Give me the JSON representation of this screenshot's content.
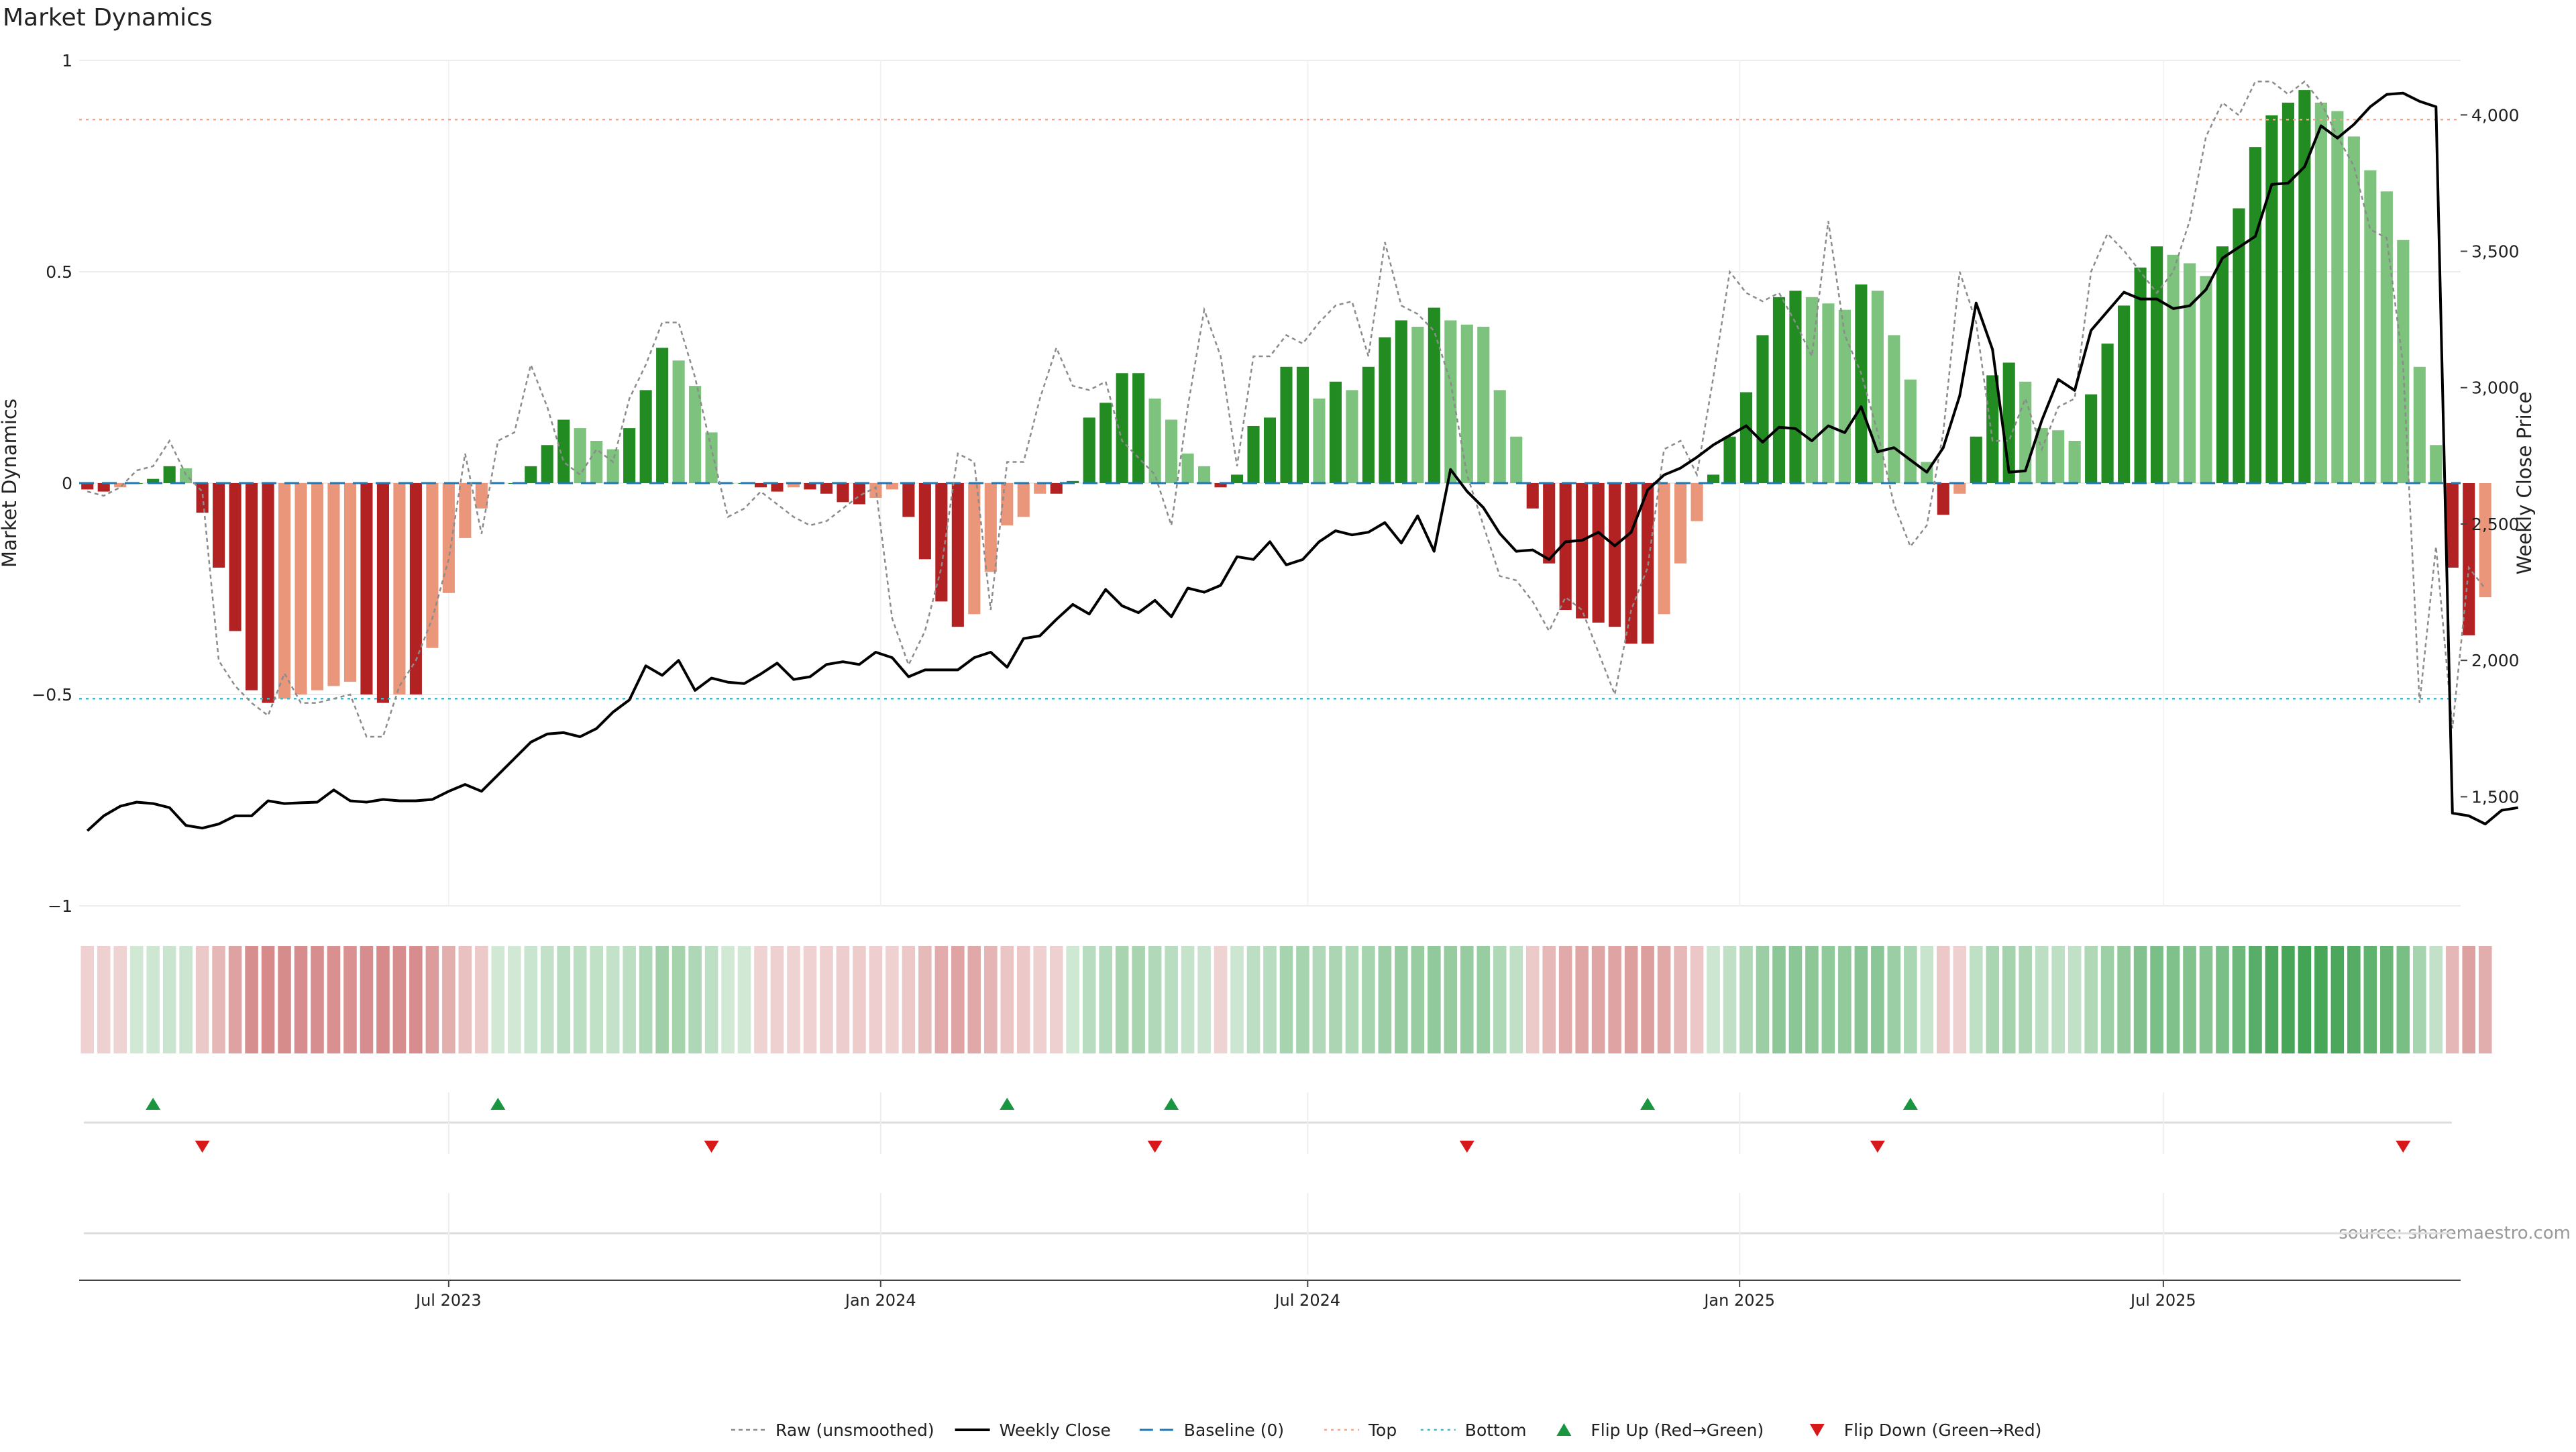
{
  "chart_data": {
    "type": "bar",
    "title": "Market Dynamics",
    "ylabel": "Market Dynamics",
    "ylabel2": "Weekly Close Price",
    "ylim": [
      -1,
      1
    ],
    "ylim2": [
      1100,
      4200
    ],
    "y_ticks": [
      1,
      0.5,
      0,
      -0.5,
      -1
    ],
    "y_tick_labels": [
      "1",
      "0.5",
      "0",
      "−0.5",
      "−1"
    ],
    "y2_ticks": [
      4000,
      3500,
      3000,
      2500,
      2000,
      1500
    ],
    "y2_tick_labels": [
      "4,000",
      "3,500",
      "3,000",
      "2,500",
      "2,000",
      "1,500"
    ],
    "x_ticks": [
      {
        "label": "Jul 2023",
        "week": 22
      },
      {
        "label": "Jan 2024",
        "week": 48.3
      },
      {
        "label": "Jul 2024",
        "week": 74.3
      },
      {
        "label": "Jan 2025",
        "week": 100.6
      },
      {
        "label": "Jul 2025",
        "week": 126.4
      }
    ],
    "top_level": 0.86,
    "bottom_level": -0.51,
    "weeks": 145,
    "series": [
      {
        "name": "Raw (unsmoothed)",
        "values": [
          -0.02,
          -0.03,
          -0.01,
          0.03,
          0.04,
          0.1,
          0.02,
          -0.02,
          -0.42,
          -0.48,
          -0.52,
          -0.55,
          -0.45,
          -0.52,
          -0.52,
          -0.51,
          -0.5,
          -0.6,
          -0.6,
          -0.48,
          -0.42,
          -0.32,
          -0.18,
          0.07,
          -0.12,
          0.1,
          0.12,
          0.28,
          0.18,
          0.05,
          0.02,
          0.08,
          0.05,
          0.2,
          0.28,
          0.38,
          0.38,
          0.25,
          0.08,
          -0.08,
          -0.06,
          -0.02,
          -0.05,
          -0.08,
          -0.1,
          -0.09,
          -0.06,
          -0.03,
          -0.01,
          -0.32,
          -0.43,
          -0.35,
          -0.2,
          0.07,
          0.05,
          -0.3,
          0.05,
          0.05,
          0.2,
          0.32,
          0.23,
          0.22,
          0.24,
          0.1,
          0.06,
          0.02,
          -0.1,
          0.18,
          0.41,
          0.3,
          0.04,
          0.3,
          0.3,
          0.35,
          0.33,
          0.38,
          0.42,
          0.43,
          0.3,
          0.57,
          0.42,
          0.4,
          0.36,
          0.24,
          0.02,
          -0.1,
          -0.22,
          -0.23,
          -0.28,
          -0.35,
          -0.27,
          -0.3,
          -0.4,
          -0.5,
          -0.3,
          -0.2,
          0.08,
          0.1,
          0.02,
          0.25,
          0.5,
          0.45,
          0.43,
          0.45,
          0.38,
          0.3,
          0.62,
          0.35,
          0.26,
          0.12,
          -0.05,
          -0.15,
          -0.1,
          0.12,
          0.5,
          0.38,
          0.1,
          0.1,
          0.2,
          0.08,
          0.18,
          0.2,
          0.5,
          0.59,
          0.55,
          0.5,
          0.45,
          0.5,
          0.62,
          0.82,
          0.9,
          0.87,
          0.95,
          0.95,
          0.92,
          0.95,
          0.9,
          0.82,
          0.75,
          0.6,
          0.58,
          0.28,
          -0.52,
          -0.15,
          -0.58,
          -0.2,
          -0.25
        ]
      },
      {
        "name": "Weekly Close",
        "values": [
          1375,
          1430,
          1465,
          1480,
          1475,
          1460,
          1395,
          1385,
          1400,
          1430,
          1430,
          1485,
          1475,
          1478,
          1480,
          1525,
          1485,
          1480,
          1490,
          1485,
          1485,
          1490,
          1520,
          1545,
          1520,
          1580,
          1640,
          1700,
          1730,
          1735,
          1720,
          1750,
          1810,
          1855,
          1980,
          1945,
          2000,
          1890,
          1935,
          1920,
          1915,
          1950,
          1990,
          1930,
          1940,
          1985,
          1995,
          1985,
          2030,
          2010,
          1940,
          1965,
          1965,
          1965,
          2010,
          2030,
          1975,
          2080,
          2090,
          2150,
          2205,
          2170,
          2260,
          2200,
          2175,
          2220,
          2160,
          2265,
          2250,
          2275,
          2380,
          2370,
          2435,
          2350,
          2370,
          2435,
          2475,
          2460,
          2470,
          2505,
          2430,
          2530,
          2400,
          2700,
          2620,
          2560,
          2465,
          2400,
          2405,
          2370,
          2435,
          2440,
          2470,
          2420,
          2470,
          2625,
          2680,
          2705,
          2745,
          2790,
          2825,
          2860,
          2800,
          2855,
          2850,
          2805,
          2860,
          2835,
          2930,
          2765,
          2780,
          2735,
          2690,
          2780,
          2970,
          3310,
          3140,
          2690,
          2695,
          2880,
          3030,
          2990,
          3210,
          3280,
          3350,
          3325,
          3325,
          3290,
          3300,
          3360,
          3475,
          3515,
          3555,
          3745,
          3750,
          3810,
          3960,
          3915,
          3965,
          4030,
          4075,
          4080,
          4050,
          4030,
          1440,
          1430,
          1400,
          1450,
          1460
        ]
      },
      {
        "name": "Baseline (0)"
      },
      {
        "name": "Top"
      },
      {
        "name": "Bottom"
      },
      {
        "name": "Flip Up (Red→Green)"
      },
      {
        "name": "Flip Down (Green→Red)"
      }
    ],
    "bars": [
      -0.015,
      -0.02,
      -0.01,
      0.0,
      0.01,
      0.04,
      0.035,
      -0.07,
      -0.2,
      -0.35,
      -0.49,
      -0.52,
      -0.51,
      -0.5,
      -0.49,
      -0.48,
      -0.47,
      -0.5,
      -0.52,
      -0.5,
      -0.5,
      -0.39,
      -0.26,
      -0.13,
      -0.06,
      0.0,
      0.0,
      0.04,
      0.09,
      0.15,
      0.13,
      0.1,
      0.08,
      0.13,
      0.22,
      0.32,
      0.29,
      0.23,
      0.12,
      0.0,
      0.0,
      -0.01,
      -0.02,
      -0.01,
      -0.015,
      -0.025,
      -0.045,
      -0.05,
      -0.035,
      -0.015,
      -0.08,
      -0.18,
      -0.28,
      -0.34,
      -0.31,
      -0.21,
      -0.1,
      -0.08,
      -0.025,
      -0.025,
      0.005,
      0.155,
      0.19,
      0.26,
      0.26,
      0.2,
      0.15,
      0.07,
      0.04,
      -0.01,
      0.02,
      0.135,
      0.155,
      0.275,
      0.275,
      0.2,
      0.24,
      0.22,
      0.275,
      0.345,
      0.385,
      0.37,
      0.415,
      0.385,
      0.375,
      0.37,
      0.22,
      0.11,
      -0.06,
      -0.19,
      -0.3,
      -0.32,
      -0.33,
      -0.34,
      -0.38,
      -0.38,
      -0.31,
      -0.19,
      -0.09,
      0.02,
      0.11,
      0.215,
      0.35,
      0.44,
      0.455,
      0.44,
      0.425,
      0.41,
      0.47,
      0.455,
      0.35,
      0.245,
      0.05,
      -0.075,
      -0.025,
      0.11,
      0.255,
      0.285,
      0.24,
      0.13,
      0.125,
      0.1,
      0.21,
      0.33,
      0.42,
      0.51,
      0.56,
      0.54,
      0.52,
      0.49,
      0.56,
      0.65,
      0.795,
      0.87,
      0.9,
      0.93,
      0.9,
      0.88,
      0.82,
      0.74,
      0.69,
      0.575,
      0.275,
      0.09,
      -0.2,
      -0.36,
      -0.27
    ],
    "flip_up_weeks": [
      4,
      25,
      56,
      66,
      95,
      111
    ],
    "flip_down_weeks": [
      7,
      38,
      65,
      84,
      109,
      141
    ],
    "colors": {
      "strong_green": "#228b22",
      "light_green": "#7dc27d",
      "strong_red": "#b22222",
      "light_red": "#e9967a",
      "weekly_close": "#000000",
      "raw": "#8c8c8c",
      "baseline": "#1f77b4",
      "top": "#f4a582",
      "bottom": "#40b8c8",
      "marker_up": "#1a9641",
      "marker_down": "#d7191c"
    },
    "legend": "bottom-center",
    "grid": true,
    "annotation": "source: sharemaestro.com"
  }
}
